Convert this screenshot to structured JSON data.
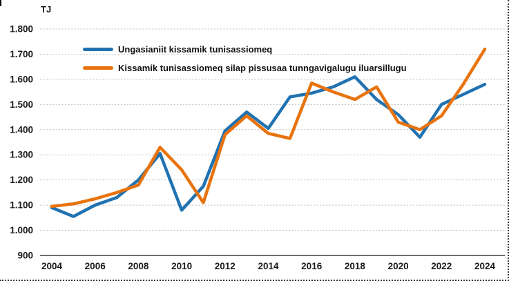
{
  "chart_data": {
    "type": "line",
    "unit_label": "TJ",
    "x": [
      2004,
      2005,
      2006,
      2007,
      2008,
      2009,
      2010,
      2011,
      2012,
      2013,
      2014,
      2015,
      2016,
      2017,
      2018,
      2019,
      2020,
      2021,
      2022,
      2023,
      2024
    ],
    "x_ticks": [
      {
        "label": "2004",
        "year": 2004
      },
      {
        "label": "2006",
        "year": 2006
      },
      {
        "label": "2008",
        "year": 2008
      },
      {
        "label": "2010",
        "year": 2010
      },
      {
        "label": "2012",
        "year": 2012
      },
      {
        "label": "2014",
        "year": 2014
      },
      {
        "label": "2016",
        "year": 2016
      },
      {
        "label": "2018",
        "year": 2018
      },
      {
        "label": "2020",
        "year": 2020
      },
      {
        "label": "2022",
        "year": 2022
      },
      {
        "label": "2024",
        "year": 2024
      }
    ],
    "ylim": [
      900,
      1800
    ],
    "y_ticks": [
      {
        "label": "900",
        "value": 900
      },
      {
        "label": "1.000",
        "value": 1000
      },
      {
        "label": "1.100",
        "value": 1100
      },
      {
        "label": "1.200",
        "value": 1200
      },
      {
        "label": "1.300",
        "value": 1300
      },
      {
        "label": "1.400",
        "value": 1400
      },
      {
        "label": "1.500",
        "value": 1500
      },
      {
        "label": "1.600",
        "value": 1600
      },
      {
        "label": "1.700",
        "value": 1700
      },
      {
        "label": "1.800",
        "value": 1800
      }
    ],
    "grid": "horizontal-dotted",
    "legend_position": "inside-top-left",
    "series": [
      {
        "name": "Ungasianiit kissamik tunisassiomeq",
        "color": "#2072b1",
        "values": [
          1090,
          1055,
          1100,
          1130,
          1200,
          1305,
          1080,
          1175,
          1395,
          1470,
          1405,
          1530,
          1545,
          1570,
          1610,
          1520,
          1460,
          1370,
          1500,
          1540,
          1580
        ]
      },
      {
        "name": "Kissamik tunisassiomeq silap pissusaa tunngavigalugu iluarsillugu",
        "color": "#e8730d",
        "values": [
          1095,
          1105,
          1125,
          1150,
          1180,
          1330,
          1240,
          1110,
          1380,
          1455,
          1385,
          1365,
          1585,
          1550,
          1520,
          1570,
          1430,
          1400,
          1455,
          1580,
          1720
        ]
      }
    ]
  }
}
